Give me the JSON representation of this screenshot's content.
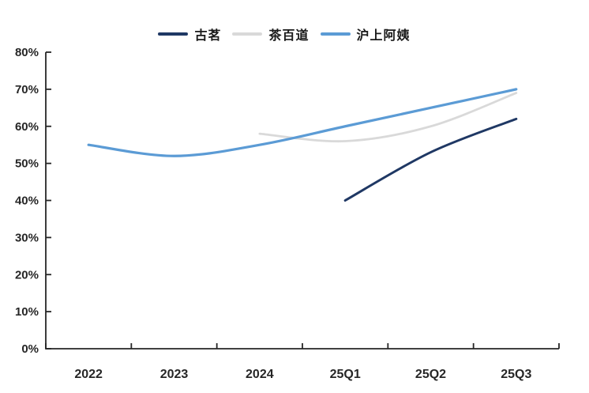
{
  "page": {
    "background_color": "#ffffff"
  },
  "chart_data": {
    "type": "line",
    "title": "",
    "categories": [
      "2022",
      "2023",
      "2024",
      "25Q1",
      "25Q2",
      "25Q3"
    ],
    "series": [
      {
        "name": "古茗",
        "color": "#1f3864",
        "values": [
          null,
          null,
          null,
          40,
          53,
          62
        ]
      },
      {
        "name": "茶百道",
        "color": "#d9d9d9",
        "values": [
          null,
          null,
          58,
          56,
          60,
          69
        ]
      },
      {
        "name": "沪上阿姨",
        "color": "#5b9bd5",
        "values": [
          55,
          52,
          55,
          60,
          65,
          70
        ]
      }
    ],
    "xlabel": "",
    "ylabel": "",
    "ylim": [
      0,
      80
    ],
    "y_tick_step": 10,
    "y_ticks": [
      "0%",
      "10%",
      "20%",
      "30%",
      "40%",
      "50%",
      "60%",
      "70%",
      "80%"
    ],
    "y_tick_format": "percent",
    "grid": false,
    "smooth": true,
    "legend_position": "top",
    "axis_color": "#262626",
    "label_color": "#262626"
  }
}
